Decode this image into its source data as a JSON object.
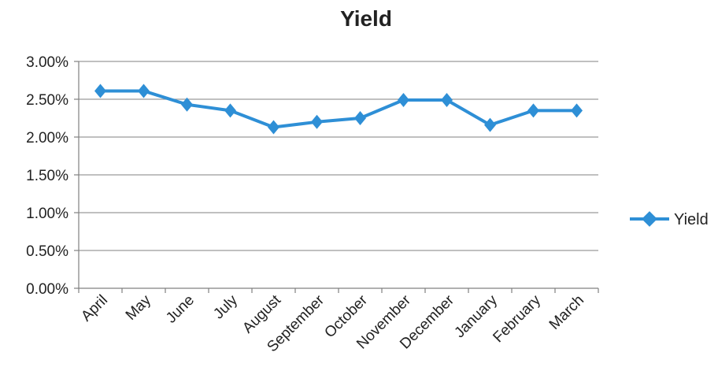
{
  "chart_data": {
    "type": "line",
    "title": "Yield",
    "xlabel": "",
    "ylabel": "",
    "categories": [
      "April",
      "May",
      "June",
      "July",
      "August",
      "September",
      "October",
      "November",
      "December",
      "January",
      "February",
      "March"
    ],
    "series": [
      {
        "name": "Yield",
        "values": [
          2.61,
          2.61,
          2.43,
          2.35,
          2.13,
          2.2,
          2.25,
          2.49,
          2.49,
          2.16,
          2.35,
          2.35
        ],
        "color": "#2e8fd6",
        "marker": "diamond"
      }
    ],
    "ylim": [
      0,
      3
    ],
    "y_ticks": [
      0,
      0.5,
      1,
      1.5,
      2,
      2.5,
      3
    ],
    "y_tick_labels": [
      "0.00%",
      "0.50%",
      "1.00%",
      "1.50%",
      "2.00%",
      "2.50%",
      "3.00%"
    ],
    "grid": "horizontal",
    "legend": "right"
  }
}
